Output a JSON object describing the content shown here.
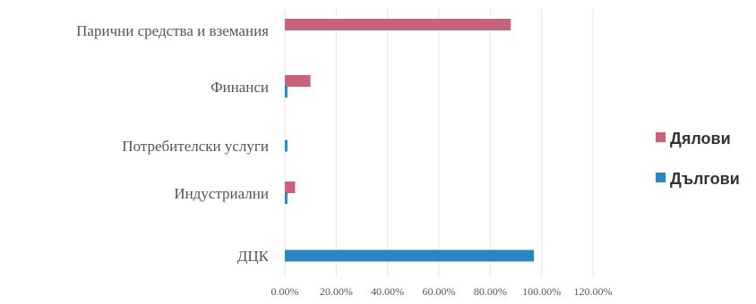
{
  "chart_data": {
    "type": "bar",
    "orientation": "horizontal",
    "categories": [
      "Парични средства и вземания",
      "Финанси",
      "Потребителски услуги",
      "Индустриални",
      "ДЦК"
    ],
    "series": [
      {
        "name": "Дялови",
        "color": "#c8627a",
        "values": [
          88,
          10,
          0,
          4,
          0
        ]
      },
      {
        "name": "Дългови",
        "color": "#2a86c2",
        "values": [
          0,
          1,
          1,
          1,
          97
        ]
      }
    ],
    "x_ticks": [
      "0.00%",
      "20.00%",
      "40.00%",
      "60.00%",
      "80.00%",
      "100.00%",
      "120.00%"
    ],
    "xlim": [
      0,
      120
    ],
    "grid": true,
    "legend_position": "right"
  }
}
